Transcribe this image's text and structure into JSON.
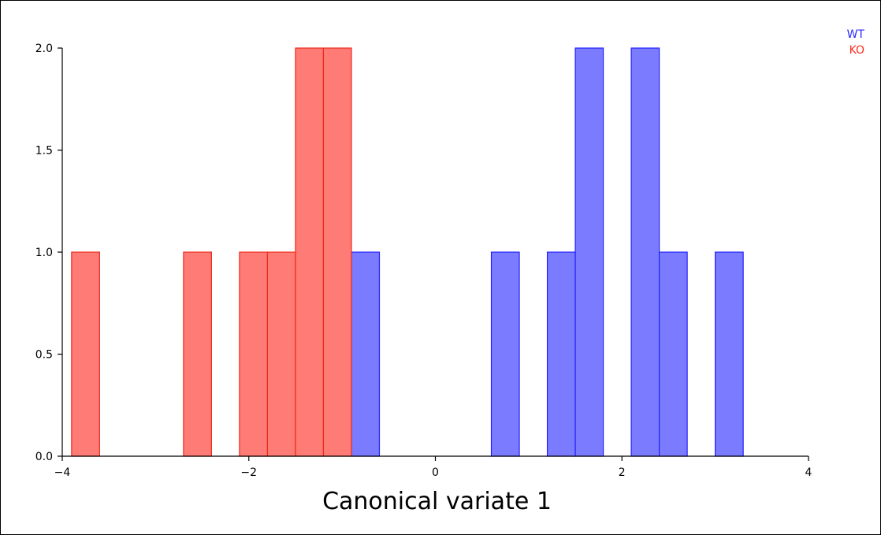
{
  "chart_data": {
    "type": "bar",
    "title": "",
    "xlabel": "Canonical variate 1",
    "ylabel": "",
    "xlim": [
      -4,
      4
    ],
    "ylim": [
      0,
      2
    ],
    "x_ticks": [
      -4,
      -2,
      0,
      2,
      4
    ],
    "x_tick_labels": [
      "−4",
      "−2",
      "0",
      "2",
      "4"
    ],
    "y_ticks": [
      0,
      0.5,
      1.0,
      1.5,
      2.0
    ],
    "y_tick_labels": [
      "0.0",
      "0.5",
      "1.0",
      "1.5",
      "2.0"
    ],
    "grid": false,
    "legend_position": "top-right",
    "series": [
      {
        "name": "WT",
        "color": "#7b7bff",
        "edge": "#1f1fff",
        "label_color": "#2a2aff",
        "bins": [
          {
            "x0": -0.9,
            "x1": -0.6,
            "count": 1
          },
          {
            "x0": 0.6,
            "x1": 0.9,
            "count": 1
          },
          {
            "x0": 1.2,
            "x1": 1.5,
            "count": 1
          },
          {
            "x0": 1.5,
            "x1": 1.8,
            "count": 2
          },
          {
            "x0": 2.1,
            "x1": 2.4,
            "count": 2
          },
          {
            "x0": 2.4,
            "x1": 2.7,
            "count": 1
          },
          {
            "x0": 3.0,
            "x1": 3.3,
            "count": 1
          }
        ]
      },
      {
        "name": "KO",
        "color": "#ff7b75",
        "edge": "#ee2a1a",
        "label_color": "#ff2a1a",
        "bins": [
          {
            "x0": -3.9,
            "x1": -3.6,
            "count": 1
          },
          {
            "x0": -2.7,
            "x1": -2.4,
            "count": 1
          },
          {
            "x0": -2.1,
            "x1": -1.8,
            "count": 1
          },
          {
            "x0": -1.8,
            "x1": -1.5,
            "count": 1
          },
          {
            "x0": -1.5,
            "x1": -1.2,
            "count": 2
          },
          {
            "x0": -1.2,
            "x1": -0.9,
            "count": 2
          }
        ]
      }
    ]
  }
}
